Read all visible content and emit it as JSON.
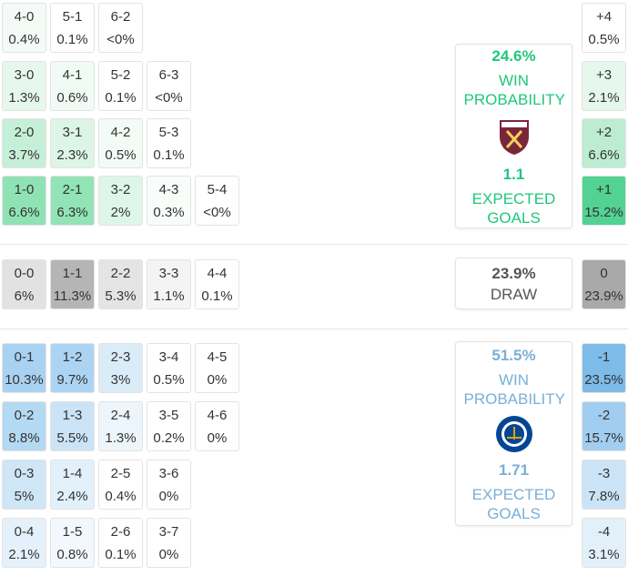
{
  "home": {
    "rows": [
      [
        {
          "score": "4-0",
          "pct": "0.4%",
          "color": "#f4fbf7"
        },
        {
          "score": "5-1",
          "pct": "0.1%",
          "color": "#ffffff"
        },
        {
          "score": "6-2",
          "pct": "<0%",
          "color": "#ffffff"
        }
      ],
      [
        {
          "score": "3-0",
          "pct": "1.3%",
          "color": "#e6f8ee"
        },
        {
          "score": "4-1",
          "pct": "0.6%",
          "color": "#f1fbf5"
        },
        {
          "score": "5-2",
          "pct": "0.1%",
          "color": "#ffffff"
        },
        {
          "score": "6-3",
          "pct": "<0%",
          "color": "#ffffff"
        }
      ],
      [
        {
          "score": "2-0",
          "pct": "3.7%",
          "color": "#c6efd8"
        },
        {
          "score": "3-1",
          "pct": "2.3%",
          "color": "#dcf5e7"
        },
        {
          "score": "4-2",
          "pct": "0.5%",
          "color": "#f3fbf6"
        },
        {
          "score": "5-3",
          "pct": "0.1%",
          "color": "#ffffff"
        }
      ],
      [
        {
          "score": "1-0",
          "pct": "6.6%",
          "color": "#8fe2b4"
        },
        {
          "score": "2-1",
          "pct": "6.3%",
          "color": "#92e3b6"
        },
        {
          "score": "3-2",
          "pct": "2%",
          "color": "#def6e9"
        },
        {
          "score": "4-3",
          "pct": "0.3%",
          "color": "#f8fdfa"
        },
        {
          "score": "5-4",
          "pct": "<0%",
          "color": "#ffffff"
        }
      ]
    ],
    "margins": [
      {
        "label": "+4",
        "pct": "0.5%",
        "color": "#ffffff"
      },
      {
        "label": "+3",
        "pct": "2.1%",
        "color": "#e6f8ee"
      },
      {
        "label": "+2",
        "pct": "6.6%",
        "color": "#bcecd1"
      },
      {
        "label": "+1",
        "pct": "15.2%",
        "color": "#52d293"
      }
    ],
    "card": {
      "win_pct": "24.6%",
      "win_label": "WIN PROBABILITY",
      "xg": "1.1",
      "xg_label": "EXPECTED GOALS",
      "color": "#1fc77a"
    }
  },
  "draw": {
    "rows": [
      [
        {
          "score": "0-0",
          "pct": "6%",
          "color": "#e2e2e2"
        },
        {
          "score": "1-1",
          "pct": "11.3%",
          "color": "#b5b5b5"
        },
        {
          "score": "2-2",
          "pct": "5.3%",
          "color": "#e4e4e4"
        },
        {
          "score": "3-3",
          "pct": "1.1%",
          "color": "#f4f4f4"
        },
        {
          "score": "4-4",
          "pct": "0.1%",
          "color": "#ffffff"
        }
      ]
    ],
    "margins": [
      {
        "label": "0",
        "pct": "23.9%",
        "color": "#a9a9a9"
      }
    ],
    "card": {
      "win_pct": "23.9%",
      "win_label": "DRAW",
      "color": "#555555"
    }
  },
  "away": {
    "rows": [
      [
        {
          "score": "0-1",
          "pct": "10.3%",
          "color": "#a8d2f1"
        },
        {
          "score": "1-2",
          "pct": "9.7%",
          "color": "#acd4f2"
        },
        {
          "score": "2-3",
          "pct": "3%",
          "color": "#dbecf9"
        },
        {
          "score": "3-4",
          "pct": "0.5%",
          "color": "#ffffff"
        },
        {
          "score": "4-5",
          "pct": "0%",
          "color": "#ffffff"
        }
      ],
      [
        {
          "score": "0-2",
          "pct": "8.8%",
          "color": "#b4d9f3"
        },
        {
          "score": "1-3",
          "pct": "5.5%",
          "color": "#cbe3f6"
        },
        {
          "score": "2-4",
          "pct": "1.3%",
          "color": "#edf5fc"
        },
        {
          "score": "3-5",
          "pct": "0.2%",
          "color": "#ffffff"
        },
        {
          "score": "4-6",
          "pct": "0%",
          "color": "#ffffff"
        }
      ],
      [
        {
          "score": "0-3",
          "pct": "5%",
          "color": "#cfe6f7"
        },
        {
          "score": "1-4",
          "pct": "2.4%",
          "color": "#e2f0fa"
        },
        {
          "score": "2-5",
          "pct": "0.4%",
          "color": "#ffffff"
        },
        {
          "score": "3-6",
          "pct": "0%",
          "color": "#ffffff"
        }
      ],
      [
        {
          "score": "0-4",
          "pct": "2.1%",
          "color": "#e4f1fa"
        },
        {
          "score": "1-5",
          "pct": "0.8%",
          "color": "#f2f8fd"
        },
        {
          "score": "2-6",
          "pct": "0.1%",
          "color": "#ffffff"
        },
        {
          "score": "3-7",
          "pct": "0%",
          "color": "#ffffff"
        }
      ]
    ],
    "margins": [
      {
        "label": "-1",
        "pct": "23.5%",
        "color": "#7dbbe9"
      },
      {
        "label": "-2",
        "pct": "15.7%",
        "color": "#a1cef0"
      },
      {
        "label": "-3",
        "pct": "7.8%",
        "color": "#cbe3f6"
      },
      {
        "label": "-4",
        "pct": "3.1%",
        "color": "#e2f0fa"
      }
    ],
    "card": {
      "win_pct": "51.5%",
      "win_label": "WIN PROBABILITY",
      "xg": "1.71",
      "xg_label": "EXPECTED GOALS",
      "color": "#78b0d8"
    }
  }
}
